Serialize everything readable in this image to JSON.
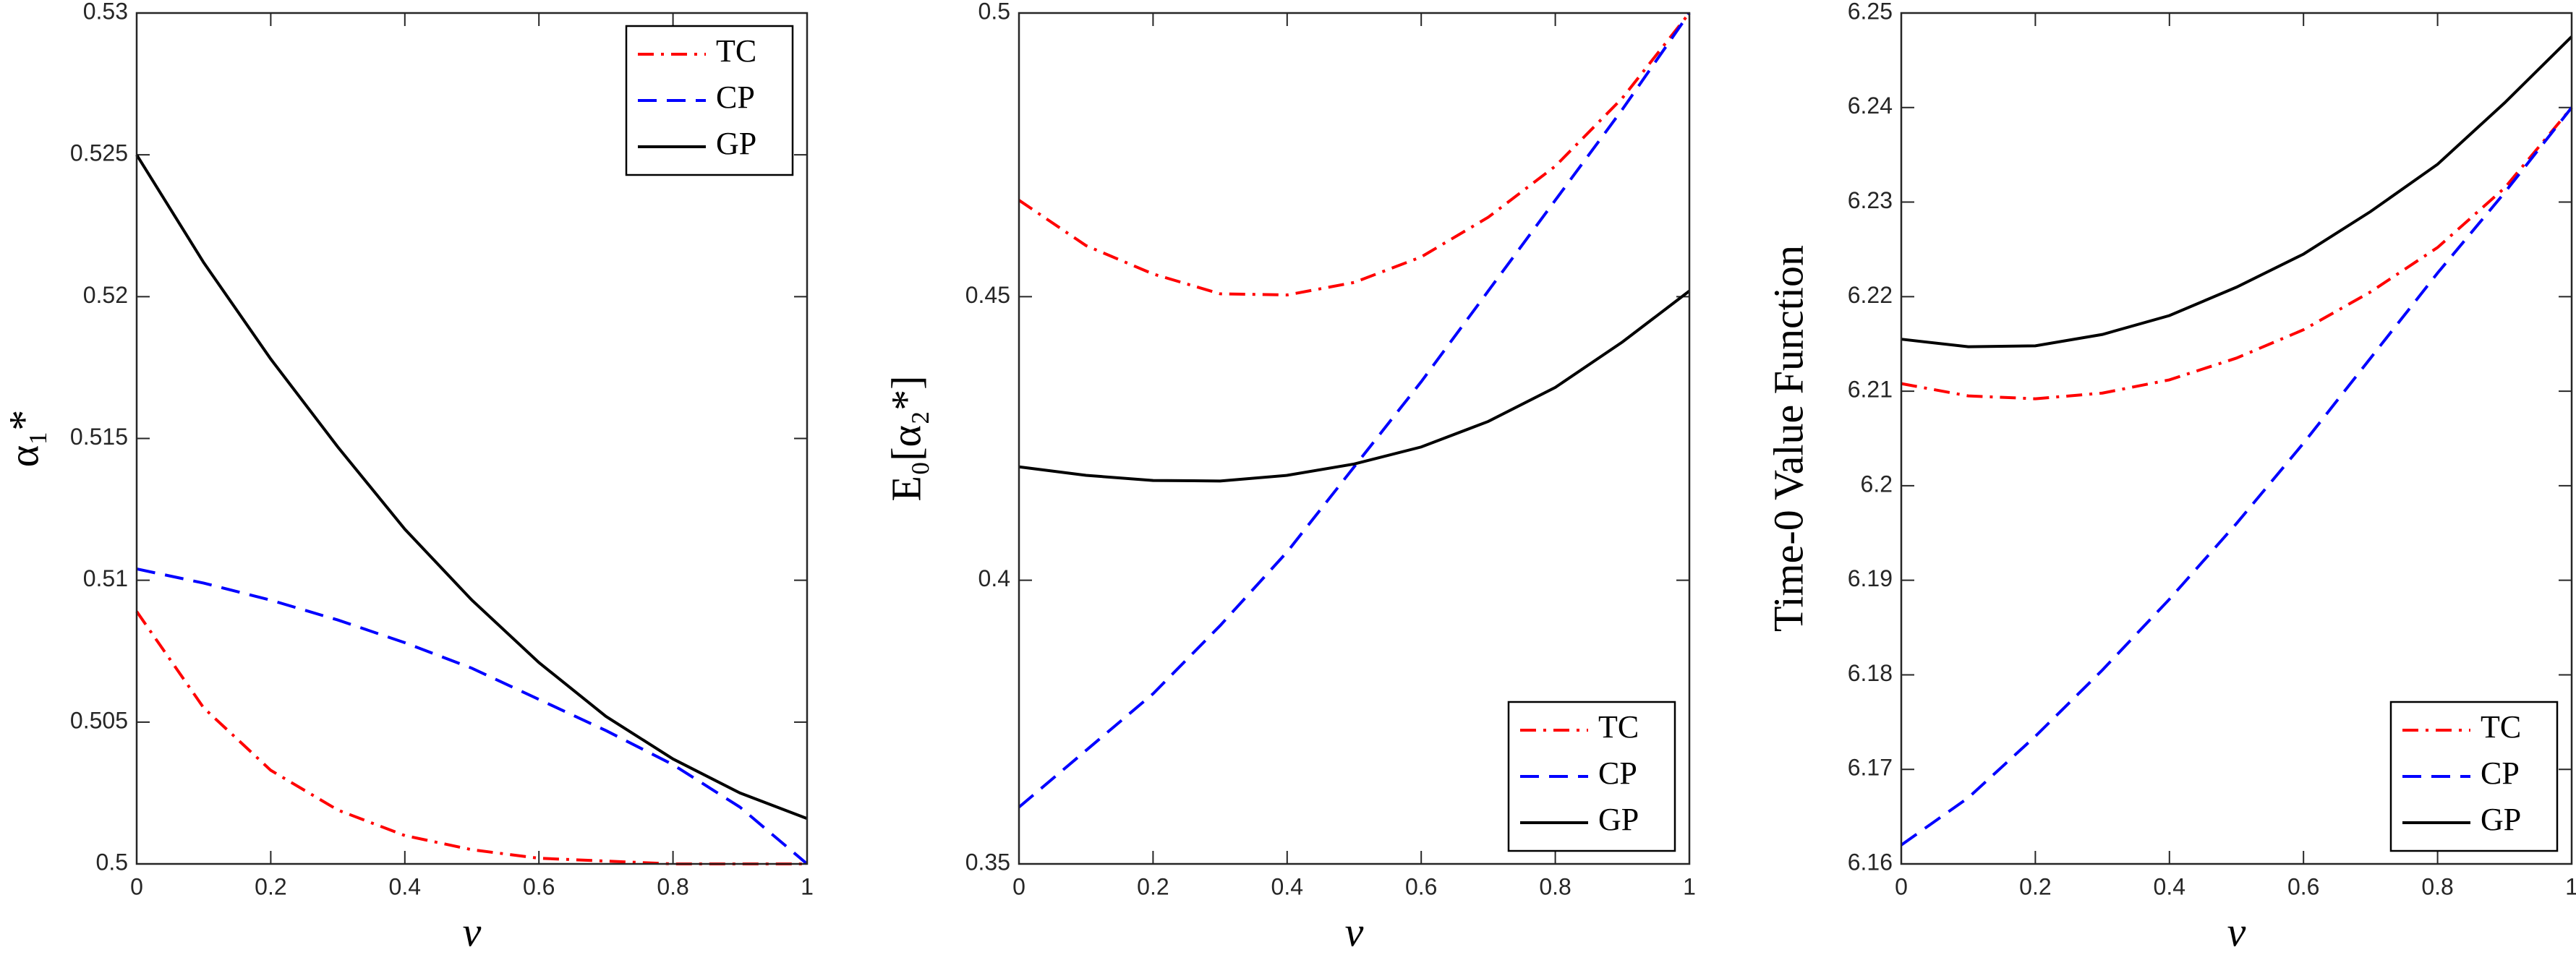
{
  "chart_data": [
    {
      "type": "line",
      "x": [
        0,
        0.1,
        0.2,
        0.3,
        0.4,
        0.5,
        0.6,
        0.7,
        0.8,
        0.9,
        1
      ],
      "xlabel": "v",
      "ylabel": "α₁*",
      "xlim": [
        0,
        1
      ],
      "xticks": [
        0,
        0.2,
        0.4,
        0.6,
        0.8,
        1
      ],
      "ylim": [
        0.5,
        0.53
      ],
      "yticks": [
        0.5,
        0.505,
        0.51,
        0.515,
        0.52,
        0.525,
        0.53
      ],
      "legend": "upper right",
      "series": [
        {
          "name": "TC",
          "color": "#ff0000",
          "style": "dashdot",
          "values": [
            0.5089,
            0.5055,
            0.5033,
            0.5019,
            0.501,
            0.5005,
            0.5002,
            0.5001,
            0.5,
            0.5,
            0.5
          ]
        },
        {
          "name": "CP",
          "color": "#0000ff",
          "style": "dashed",
          "values": [
            0.5104,
            0.5099,
            0.5093,
            0.5086,
            0.5078,
            0.5069,
            0.5058,
            0.5047,
            0.5035,
            0.502,
            0.5
          ]
        },
        {
          "name": "GP",
          "color": "#000000",
          "style": "solid",
          "values": [
            0.525,
            0.5212,
            0.5178,
            0.5147,
            0.5118,
            0.5093,
            0.5071,
            0.5052,
            0.5037,
            0.5025,
            0.5016
          ]
        }
      ]
    },
    {
      "type": "line",
      "x": [
        0,
        0.1,
        0.2,
        0.3,
        0.4,
        0.5,
        0.6,
        0.7,
        0.8,
        0.9,
        1
      ],
      "xlabel": "v",
      "ylabel": "E₀[α₂*]",
      "xlim": [
        0,
        1
      ],
      "xticks": [
        0,
        0.2,
        0.4,
        0.6,
        0.8,
        1
      ],
      "ylim": [
        0.35,
        0.5
      ],
      "yticks": [
        0.35,
        0.4,
        0.45,
        0.5
      ],
      "legend": "lower right",
      "series": [
        {
          "name": "TC",
          "color": "#ff0000",
          "style": "dashdot",
          "values": [
            0.467,
            0.459,
            0.454,
            0.4505,
            0.4503,
            0.4525,
            0.457,
            0.464,
            0.473,
            0.485,
            0.5
          ]
        },
        {
          "name": "CP",
          "color": "#0000ff",
          "style": "dashed",
          "values": [
            0.36,
            0.37,
            0.38,
            0.392,
            0.405,
            0.42,
            0.435,
            0.451,
            0.467,
            0.483,
            0.5
          ]
        },
        {
          "name": "GP",
          "color": "#000000",
          "style": "solid",
          "values": [
            0.42,
            0.4185,
            0.4176,
            0.4175,
            0.4185,
            0.4205,
            0.4235,
            0.428,
            0.434,
            0.442,
            0.451
          ]
        }
      ]
    },
    {
      "type": "line",
      "x": [
        0,
        0.1,
        0.2,
        0.3,
        0.4,
        0.5,
        0.6,
        0.7,
        0.8,
        0.9,
        1
      ],
      "xlabel": "v",
      "ylabel": "Time-0 Value Function",
      "xlim": [
        0,
        1
      ],
      "xticks": [
        0,
        0.2,
        0.4,
        0.6,
        0.8,
        1
      ],
      "ylim": [
        6.16,
        6.25
      ],
      "yticks": [
        6.16,
        6.17,
        6.18,
        6.19,
        6.2,
        6.21,
        6.22,
        6.23,
        6.24,
        6.25
      ],
      "legend": "lower right",
      "series": [
        {
          "name": "TC",
          "color": "#ff0000",
          "style": "dashdot",
          "values": [
            6.2108,
            6.2095,
            6.2092,
            6.2098,
            6.2112,
            6.2135,
            6.2165,
            6.2205,
            6.2252,
            6.2315,
            6.24
          ]
        },
        {
          "name": "CP",
          "color": "#0000ff",
          "style": "dashed",
          "values": [
            6.162,
            6.167,
            6.1735,
            6.1805,
            6.188,
            6.196,
            6.2045,
            6.2135,
            6.2225,
            6.231,
            6.24
          ]
        },
        {
          "name": "GP",
          "color": "#000000",
          "style": "solid",
          "values": [
            6.2155,
            6.2147,
            6.2148,
            6.216,
            6.218,
            6.221,
            6.2245,
            6.229,
            6.234,
            6.2405,
            6.2475
          ]
        }
      ]
    }
  ]
}
